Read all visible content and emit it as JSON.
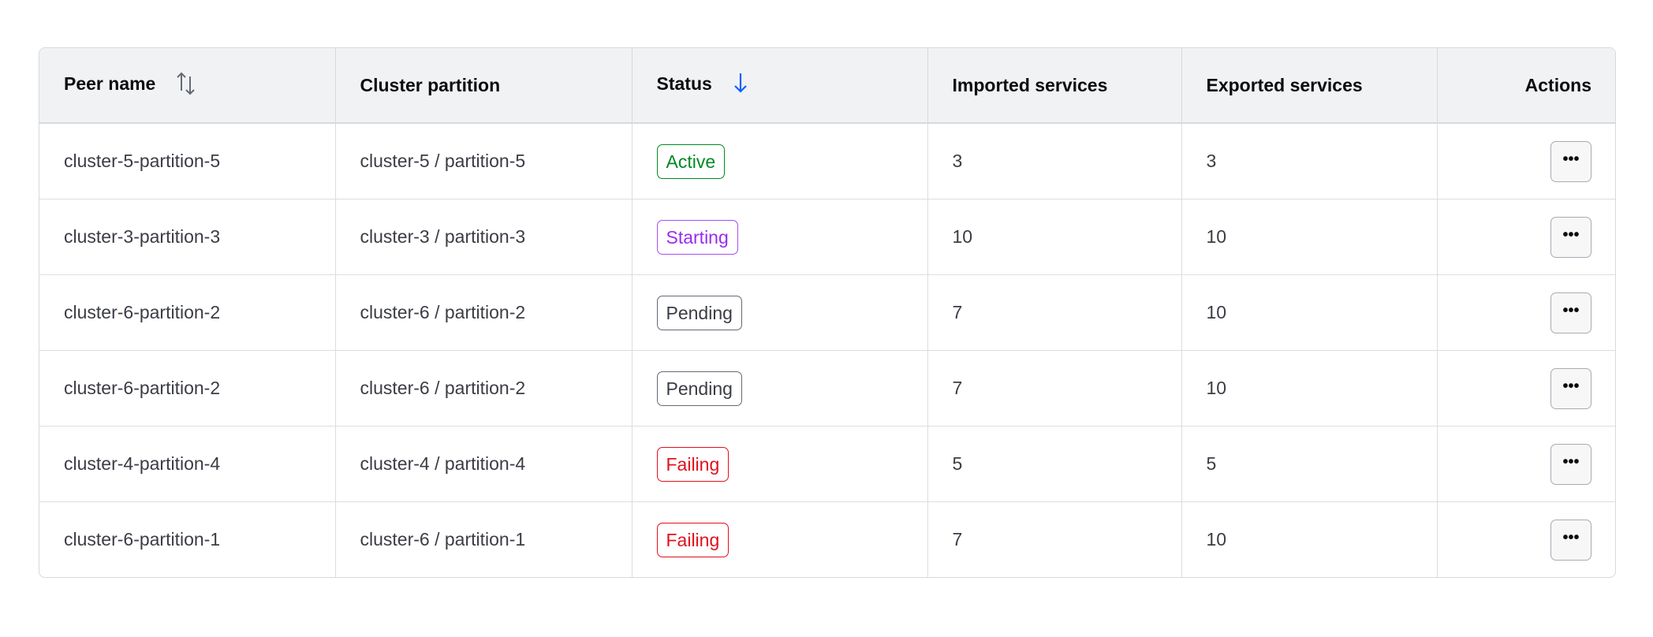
{
  "columns": [
    {
      "label": "Peer name",
      "sort": "unsorted",
      "icon": "sort-icon"
    },
    {
      "label": "Cluster partition"
    },
    {
      "label": "Status",
      "sort": "descending",
      "icon": "arrow-down-icon"
    },
    {
      "label": "Imported services"
    },
    {
      "label": "Exported services"
    },
    {
      "label": "Actions"
    }
  ],
  "colors": {
    "accent": "#1060ff",
    "active": "#008a22",
    "starting": "#9a2bf0",
    "pending": "#656a76",
    "failing": "#e0111b"
  },
  "rows": [
    {
      "peer": "cluster-5-partition-5",
      "partition": "cluster-5 / partition-5",
      "status": "Active",
      "status_key": "active",
      "imported": "3",
      "exported": "3",
      "action": "•••"
    },
    {
      "peer": "cluster-3-partition-3",
      "partition": "cluster-3 / partition-3",
      "status": "Starting",
      "status_key": "starting",
      "imported": "10",
      "exported": "10",
      "action": "•••"
    },
    {
      "peer": "cluster-6-partition-2",
      "partition": "cluster-6 / partition-2",
      "status": "Pending",
      "status_key": "pending",
      "imported": "7",
      "exported": "10",
      "action": "•••"
    },
    {
      "peer": "cluster-6-partition-2",
      "partition": "cluster-6 / partition-2",
      "status": "Pending",
      "status_key": "pending",
      "imported": "7",
      "exported": "10",
      "action": "•••"
    },
    {
      "peer": "cluster-4-partition-4",
      "partition": "cluster-4 / partition-4",
      "status": "Failing",
      "status_key": "failing",
      "imported": "5",
      "exported": "5",
      "action": "•••"
    },
    {
      "peer": "cluster-6-partition-1",
      "partition": "cluster-6 / partition-1",
      "status": "Failing",
      "status_key": "failing",
      "imported": "7",
      "exported": "10",
      "action": "•••"
    }
  ]
}
